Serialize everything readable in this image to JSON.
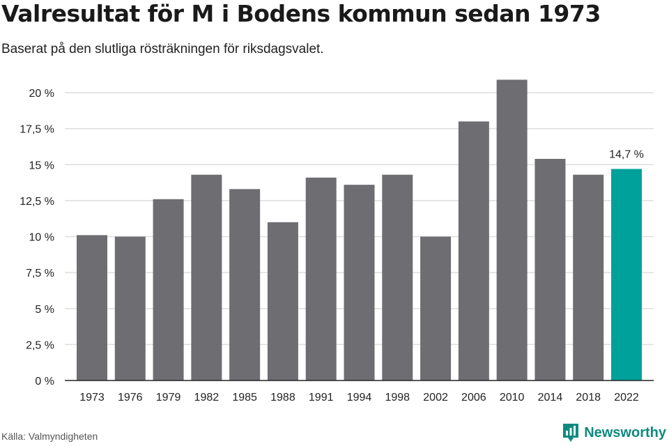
{
  "title": "Valresultat för M i Bodens kommun sedan 1973",
  "subtitle": "Baserat på den slutliga rösträkningen för riksdagsvalet.",
  "source": "Källa: Valmyndigheten",
  "brand": {
    "name": "Newsworthy",
    "icon": "newsworthy-logo-icon",
    "color": "#0e8a7f"
  },
  "colors": {
    "bar": "#6e6d72",
    "highlight": "#00a19a",
    "grid": "#dddddd",
    "axis": "#222222"
  },
  "chart_data": {
    "type": "bar",
    "categories": [
      "1973",
      "1976",
      "1979",
      "1982",
      "1985",
      "1988",
      "1991",
      "1994",
      "1998",
      "2002",
      "2006",
      "2010",
      "2014",
      "2018",
      "2022"
    ],
    "values": [
      10.1,
      10.0,
      12.6,
      14.3,
      13.3,
      11.0,
      14.1,
      13.6,
      14.3,
      10.0,
      18.0,
      20.9,
      15.4,
      14.3,
      14.7
    ],
    "highlight_index": 14,
    "data_labels": [
      {
        "category": "2022",
        "text": "14,7 %"
      }
    ],
    "ylim": [
      0,
      20
    ],
    "y_ticks": [
      0,
      2.5,
      5,
      7.5,
      10,
      12.5,
      15,
      17.5,
      20
    ],
    "y_tick_labels": [
      "0 %",
      "2,5 %",
      "5 %",
      "7,5 %",
      "10 %",
      "12,5 %",
      "15 %",
      "17,5 %",
      "20 %"
    ],
    "grid": true,
    "legend": false
  }
}
